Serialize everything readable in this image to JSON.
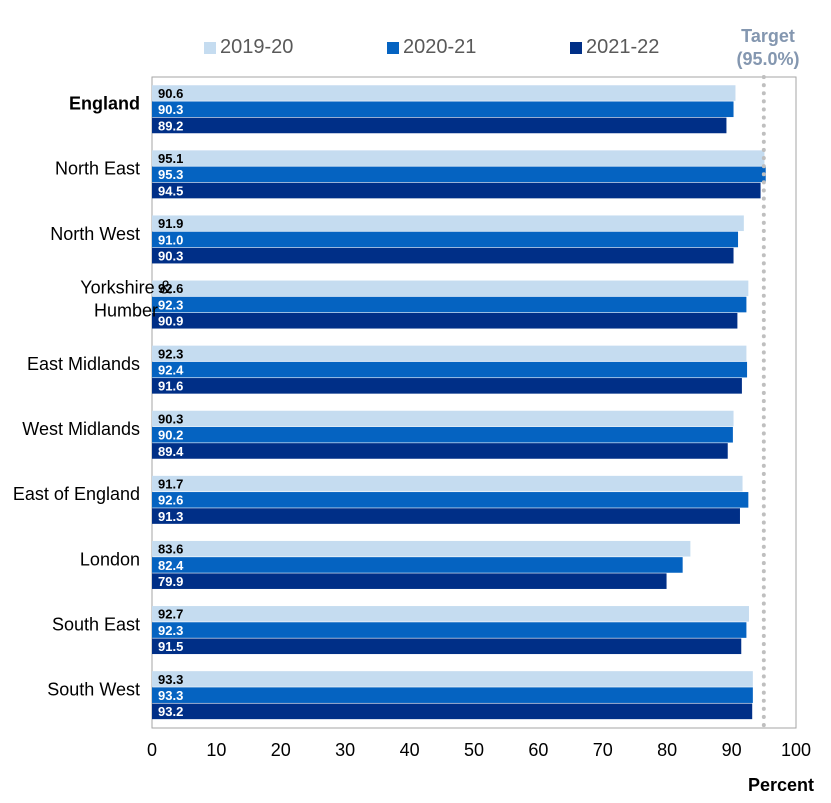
{
  "chart_data": {
    "type": "bar",
    "orientation": "horizontal",
    "categories": [
      "England",
      "North East",
      "North West",
      "Yorkshire & Humber",
      "East Midlands",
      "West Midlands",
      "East of England",
      "London",
      "South East",
      "South West"
    ],
    "series": [
      {
        "name": "2019-20",
        "color": "#c5dcf0",
        "values": [
          90.6,
          95.1,
          91.9,
          92.6,
          92.3,
          90.3,
          91.7,
          83.6,
          92.7,
          93.3
        ]
      },
      {
        "name": "2020-21",
        "color": "#0563c1",
        "values": [
          90.3,
          95.3,
          91.0,
          92.3,
          92.4,
          90.2,
          92.6,
          82.4,
          92.3,
          93.3
        ]
      },
      {
        "name": "2021-22",
        "color": "#002f87",
        "values": [
          89.2,
          94.5,
          90.3,
          90.9,
          91.6,
          89.4,
          91.3,
          79.9,
          91.5,
          93.2
        ]
      }
    ],
    "xlim": [
      0,
      100
    ],
    "xticks": [
      0,
      10,
      20,
      30,
      40,
      50,
      60,
      70,
      80,
      90,
      100
    ],
    "xlabel": "Percent",
    "target": {
      "value": 95.0,
      "label_line1": "Target",
      "label_line2": "(95.0%)",
      "color": "#bfbfbf"
    },
    "legend_position": "top",
    "bold_category": "England"
  }
}
